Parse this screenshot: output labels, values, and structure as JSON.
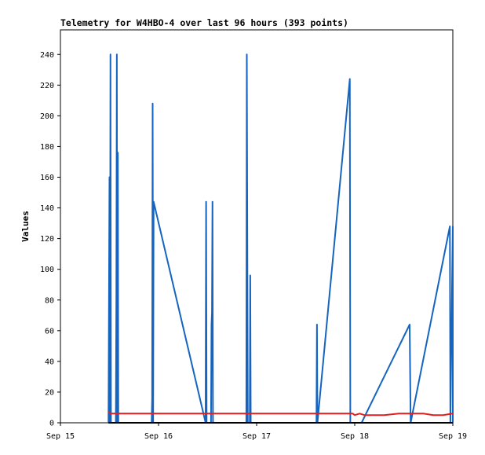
{
  "chart_data": {
    "type": "line",
    "title": "Telemetry for W4HBO-4 over last 96 hours (393 points)",
    "xlabel": "",
    "ylabel": "Values",
    "x_ticks": [
      "Sep 15",
      "Sep 16",
      "Sep 17",
      "Sep 18",
      "Sep 19"
    ],
    "y_ticks": [
      0,
      20,
      40,
      60,
      80,
      100,
      120,
      140,
      160,
      180,
      200,
      220,
      240
    ],
    "xlim": [
      0,
      4
    ],
    "ylim": [
      0,
      256
    ],
    "grid": false,
    "legend": "none",
    "series": [
      {
        "color": "#1565c0",
        "points": [
          [
            0.49,
            0
          ],
          [
            0.5,
            160
          ],
          [
            0.505,
            0
          ],
          [
            0.51,
            240
          ],
          [
            0.515,
            0
          ],
          [
            0.565,
            0
          ],
          [
            0.57,
            80
          ],
          [
            0.575,
            240
          ],
          [
            0.58,
            0
          ],
          [
            0.585,
            176
          ],
          [
            0.59,
            0
          ],
          [
            0.93,
            0
          ],
          [
            0.935,
            16
          ],
          [
            0.94,
            208
          ],
          [
            0.945,
            0
          ],
          [
            0.95,
            144
          ],
          [
            1.48,
            0
          ],
          [
            1.485,
            144
          ],
          [
            1.49,
            0
          ],
          [
            1.535,
            0
          ],
          [
            1.54,
            64
          ],
          [
            1.545,
            72
          ],
          [
            1.55,
            144
          ],
          [
            1.555,
            0
          ],
          [
            1.895,
            0
          ],
          [
            1.9,
            240
          ],
          [
            1.905,
            120
          ],
          [
            1.91,
            0
          ],
          [
            1.93,
            0
          ],
          [
            1.935,
            96
          ],
          [
            1.94,
            0
          ],
          [
            2.61,
            0
          ],
          [
            2.615,
            64
          ],
          [
            2.62,
            0
          ],
          [
            2.62,
            0
          ],
          [
            2.95,
            224
          ],
          [
            2.955,
            0
          ],
          [
            3.07,
            0
          ],
          [
            3.56,
            64
          ],
          [
            3.565,
            32
          ],
          [
            3.57,
            0
          ],
          [
            3.97,
            128
          ],
          [
            3.975,
            0
          ],
          [
            4.0,
            128
          ],
          [
            4.005,
            112
          ],
          [
            4.01,
            0
          ]
        ]
      },
      {
        "color": "#e02020",
        "points": [
          [
            0.49,
            7
          ],
          [
            0.51,
            6
          ],
          [
            0.8,
            6
          ],
          [
            1.2,
            6
          ],
          [
            1.6,
            6
          ],
          [
            2.0,
            6
          ],
          [
            2.4,
            6
          ],
          [
            2.8,
            6
          ],
          [
            2.98,
            6
          ],
          [
            3.0,
            5
          ],
          [
            3.05,
            6
          ],
          [
            3.1,
            5
          ],
          [
            3.3,
            5
          ],
          [
            3.45,
            6
          ],
          [
            3.55,
            6
          ],
          [
            3.7,
            6
          ],
          [
            3.8,
            5
          ],
          [
            3.9,
            5
          ],
          [
            4.0,
            6
          ]
        ]
      },
      {
        "color": "#000000",
        "points": [
          [
            0.49,
            0
          ],
          [
            4.01,
            0
          ]
        ]
      }
    ]
  }
}
